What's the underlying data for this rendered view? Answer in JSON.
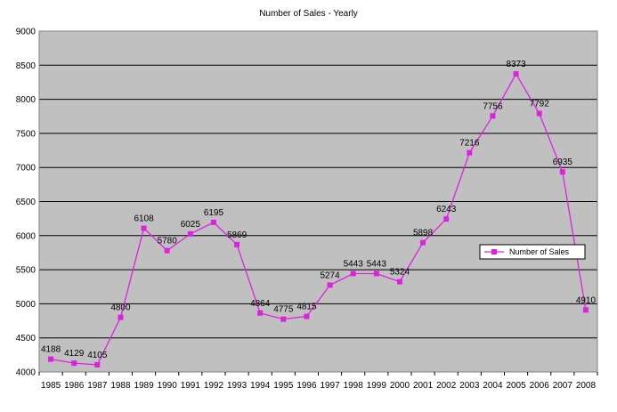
{
  "chart_data": {
    "type": "line",
    "title": "Number of Sales - Yearly",
    "xlabel": "",
    "ylabel": "",
    "categories": [
      "1985",
      "1986",
      "1987",
      "1988",
      "1989",
      "1990",
      "1991",
      "1992",
      "1993",
      "1994",
      "1995",
      "1996",
      "1997",
      "1998",
      "1999",
      "2000",
      "2001",
      "2002",
      "2003",
      "2004",
      "2005",
      "2006",
      "2007",
      "2008"
    ],
    "series": [
      {
        "name": "Number of Sales",
        "values": [
          4188,
          4129,
          4105,
          4800,
          6108,
          5780,
          6025,
          6195,
          5869,
          4864,
          4775,
          4815,
          5274,
          5443,
          5443,
          5324,
          5898,
          6243,
          7216,
          7756,
          8373,
          7792,
          6935,
          4910
        ]
      }
    ],
    "ylim": [
      4000,
      9000
    ],
    "yticks": [
      4000,
      4500,
      5000,
      5500,
      6000,
      6500,
      7000,
      7500,
      8000,
      8500,
      9000
    ],
    "grid": true,
    "legend_position": "right",
    "colors": {
      "series": "#E020E0",
      "plot_bg": "#C0C0C0",
      "grid": "#000000"
    }
  }
}
